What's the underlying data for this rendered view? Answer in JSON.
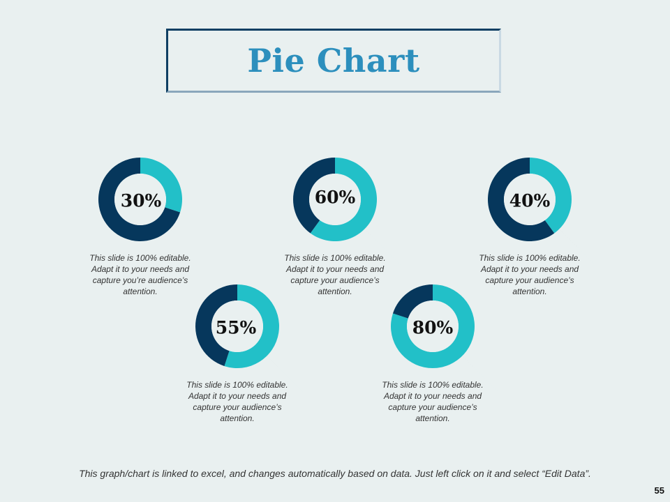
{
  "title": "Pie Chart",
  "colors": {
    "dark": "#06375c",
    "light": "#22c0c8",
    "hole": "#e9f0f0"
  },
  "chart_data": [
    {
      "type": "pie",
      "label": "30%",
      "value": 30,
      "description": "This slide is 100% editable. Adapt it to your needs and capture you’re audience’s attention."
    },
    {
      "type": "pie",
      "label": "60%",
      "value": 60,
      "description": "This slide is 100% editable. Adapt it to your needs and capture your audience’s attention."
    },
    {
      "type": "pie",
      "label": "40%",
      "value": 40,
      "description": "This slide is 100% editable. Adapt it to your needs and capture your audience’s attention."
    },
    {
      "type": "pie",
      "label": "55%",
      "value": 55,
      "description": "This slide is 100% editable. Adapt it to your needs and capture your audience’s attention."
    },
    {
      "type": "pie",
      "label": "80%",
      "value": 80,
      "description": "This slide is 100% editable. Adapt it to your needs and capture your audience’s attention."
    }
  ],
  "footer_note": "This graph/chart is linked to excel, and changes automatically based on data. Just left click on it and select “Edit Data”.",
  "page_number": "55"
}
